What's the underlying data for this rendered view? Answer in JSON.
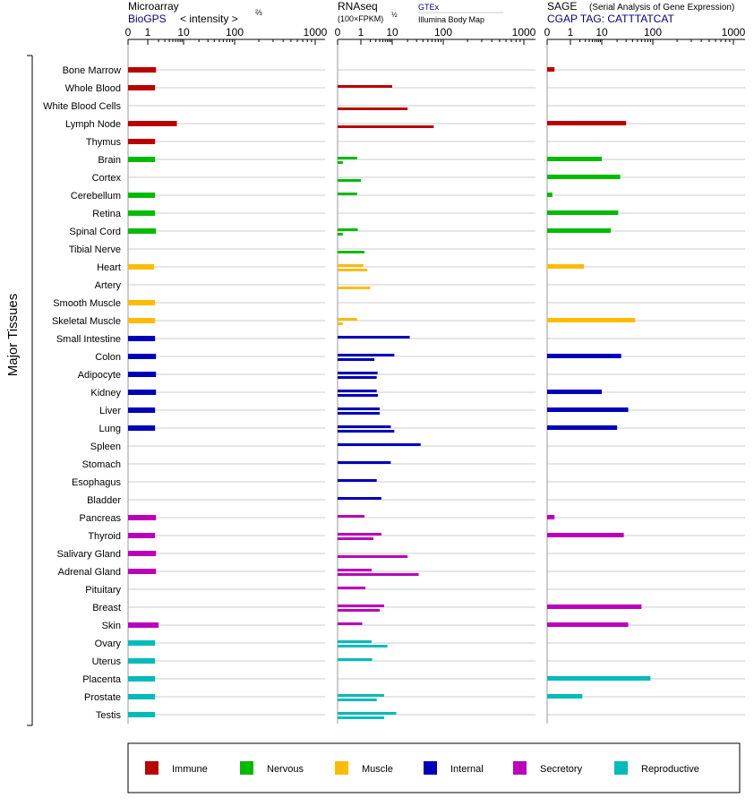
{
  "chart_data": {
    "type": "bar",
    "orientation": "horizontal",
    "y_axis_label": "Major Tissues",
    "x_ticks": [
      "0",
      "1",
      "10",
      "100",
      "1000"
    ],
    "x_tick_values": [
      0,
      1,
      10,
      100,
      1000
    ],
    "panels": [
      {
        "id": "microarray",
        "title": "Microarray",
        "subtitle": "BioGPS",
        "axis_note": "< intensity >",
        "axis_note_exponent": "⅔",
        "scale": "power-2/3",
        "xlim": [
          0,
          1000
        ]
      },
      {
        "id": "rnaseq",
        "title": "RNAseq",
        "axis_note": "(100×FPKM)",
        "axis_note_exponent": "½",
        "series_names": [
          "GTEx",
          "Illumina Body Map"
        ],
        "scale": "log",
        "xlim": [
          0,
          1000
        ]
      },
      {
        "id": "sage",
        "title": "SAGE",
        "title_note": "(Serial Analysis of Gene Expression)",
        "subtitle": "CGAP TAG: CATTTATCAT",
        "scale": "log",
        "xlim": [
          0,
          1000
        ]
      }
    ],
    "tissues": [
      {
        "name": "Bone Marrow",
        "group": "Immune",
        "microarray": 1.7,
        "gtex": null,
        "ibm": null,
        "sage": 0.1
      },
      {
        "name": "Whole Blood",
        "group": "Immune",
        "microarray": 1.6,
        "gtex": 10,
        "ibm": null,
        "sage": null
      },
      {
        "name": "White Blood Cells",
        "group": "Immune",
        "microarray": null,
        "gtex": null,
        "ibm": 20,
        "sage": null
      },
      {
        "name": "Lymph Node",
        "group": "Immune",
        "microarray": 6.5,
        "gtex": null,
        "ibm": 65,
        "sage": 30
      },
      {
        "name": "Thymus",
        "group": "Immune",
        "microarray": 1.6,
        "gtex": null,
        "ibm": null,
        "sage": null
      },
      {
        "name": "Brain",
        "group": "Nervous",
        "microarray": 1.6,
        "gtex": 0.7,
        "ibm": 0.05,
        "sage": 10
      },
      {
        "name": "Cortex",
        "group": "Nervous",
        "microarray": null,
        "gtex": null,
        "ibm": 1.0,
        "sage": 23
      },
      {
        "name": "Cerebellum",
        "group": "Nervous",
        "microarray": 1.6,
        "gtex": 0.7,
        "ibm": null,
        "sage": 0.05
      },
      {
        "name": "Retina",
        "group": "Nervous",
        "microarray": 1.6,
        "gtex": null,
        "ibm": null,
        "sage": 21
      },
      {
        "name": "Spinal Cord",
        "group": "Nervous",
        "microarray": 1.7,
        "gtex": 0.75,
        "ibm": 0.05,
        "sage": 15
      },
      {
        "name": "Tibial Nerve",
        "group": "Nervous",
        "microarray": null,
        "gtex": null,
        "ibm": 1.3,
        "sage": null
      },
      {
        "name": "Heart",
        "group": "Muscle",
        "microarray": 1.5,
        "gtex": 1.2,
        "ibm": 1.6,
        "sage": 2.7
      },
      {
        "name": "Artery",
        "group": "Muscle",
        "microarray": null,
        "gtex": null,
        "ibm": 2.0,
        "sage": null
      },
      {
        "name": "Smooth Muscle",
        "group": "Muscle",
        "microarray": 1.6,
        "gtex": null,
        "ibm": null,
        "sage": null
      },
      {
        "name": "Skeletal Muscle",
        "group": "Muscle",
        "microarray": 1.6,
        "gtex": 0.7,
        "ibm": 0.05,
        "sage": 45
      },
      {
        "name": "Small Intestine",
        "group": "Internal",
        "microarray": 1.6,
        "gtex": 22,
        "ibm": null,
        "sage": null
      },
      {
        "name": "Colon",
        "group": "Internal",
        "microarray": 1.7,
        "gtex": 11,
        "ibm": 2.7,
        "sage": 24
      },
      {
        "name": "Adipocyte",
        "group": "Internal",
        "microarray": 1.7,
        "gtex": 3.4,
        "ibm": 3.2,
        "sage": null
      },
      {
        "name": "Kidney",
        "group": "Internal",
        "microarray": 1.7,
        "gtex": 3.2,
        "ibm": 3.5,
        "sage": 10
      },
      {
        "name": "Liver",
        "group": "Internal",
        "microarray": 1.6,
        "gtex": 4.0,
        "ibm": 4.0,
        "sage": 33
      },
      {
        "name": "Lung",
        "group": "Internal",
        "microarray": 1.6,
        "gtex": 9,
        "ibm": 11,
        "sage": 20
      },
      {
        "name": "Spleen",
        "group": "Internal",
        "microarray": null,
        "gtex": 36,
        "ibm": null,
        "sage": null
      },
      {
        "name": "Stomach",
        "group": "Internal",
        "microarray": null,
        "gtex": 9,
        "ibm": null,
        "sage": null
      },
      {
        "name": "Esophagus",
        "group": "Internal",
        "microarray": null,
        "gtex": 3.2,
        "ibm": null,
        "sage": null
      },
      {
        "name": "Bladder",
        "group": "Internal",
        "microarray": null,
        "gtex": 4.5,
        "ibm": null,
        "sage": null
      },
      {
        "name": "Pancreas",
        "group": "Secretory",
        "microarray": 1.7,
        "gtex": 1.3,
        "ibm": null,
        "sage": 0.1
      },
      {
        "name": "Thyroid",
        "group": "Secretory",
        "microarray": 1.6,
        "gtex": 4.5,
        "ibm": 2.5,
        "sage": 27
      },
      {
        "name": "Salivary Gland",
        "group": "Secretory",
        "microarray": 1.7,
        "gtex": null,
        "ibm": 20,
        "sage": null
      },
      {
        "name": "Adrenal Gland",
        "group": "Secretory",
        "microarray": 1.7,
        "gtex": 2.2,
        "ibm": 33,
        "sage": null
      },
      {
        "name": "Pituitary",
        "group": "Secretory",
        "microarray": null,
        "gtex": 1.4,
        "ibm": null,
        "sage": null
      },
      {
        "name": "Breast",
        "group": "Secretory",
        "microarray": null,
        "gtex": 5.5,
        "ibm": 4.0,
        "sage": 60
      },
      {
        "name": "Skin",
        "group": "Secretory",
        "microarray": 2.0,
        "gtex": 1.1,
        "ibm": null,
        "sage": 33
      },
      {
        "name": "Ovary",
        "group": "Reproductive",
        "microarray": 1.6,
        "gtex": 2.2,
        "ibm": 7,
        "sage": null
      },
      {
        "name": "Uterus",
        "group": "Reproductive",
        "microarray": 1.6,
        "gtex": 2.3,
        "ibm": null,
        "sage": null
      },
      {
        "name": "Placenta",
        "group": "Reproductive",
        "microarray": 1.6,
        "gtex": null,
        "ibm": null,
        "sage": 90
      },
      {
        "name": "Prostate",
        "group": "Reproductive",
        "microarray": 1.6,
        "gtex": 5.5,
        "ibm": 3.2,
        "sage": 2.4
      },
      {
        "name": "Testis",
        "group": "Reproductive",
        "microarray": 1.6,
        "gtex": 12,
        "ibm": 5.5,
        "sage": null
      }
    ],
    "legend": {
      "placement": "bottom",
      "items": [
        {
          "label": "Immune",
          "color": "#bb0000"
        },
        {
          "label": "Nervous",
          "color": "#00bb00"
        },
        {
          "label": "Muscle",
          "color": "#ffbb00"
        },
        {
          "label": "Internal",
          "color": "#0000bb"
        },
        {
          "label": "Secretory",
          "color": "#bb00bb"
        },
        {
          "label": "Reproductive",
          "color": "#00bbbb"
        }
      ]
    },
    "grid": true
  },
  "colors": {
    "Immune": "#bb0000",
    "Nervous": "#00bb00",
    "Muscle": "#ffbb00",
    "Internal": "#0000bb",
    "Secretory": "#bb00bb",
    "Reproductive": "#00bbbb",
    "subtitle": "#000080",
    "row_line": "#999999"
  }
}
